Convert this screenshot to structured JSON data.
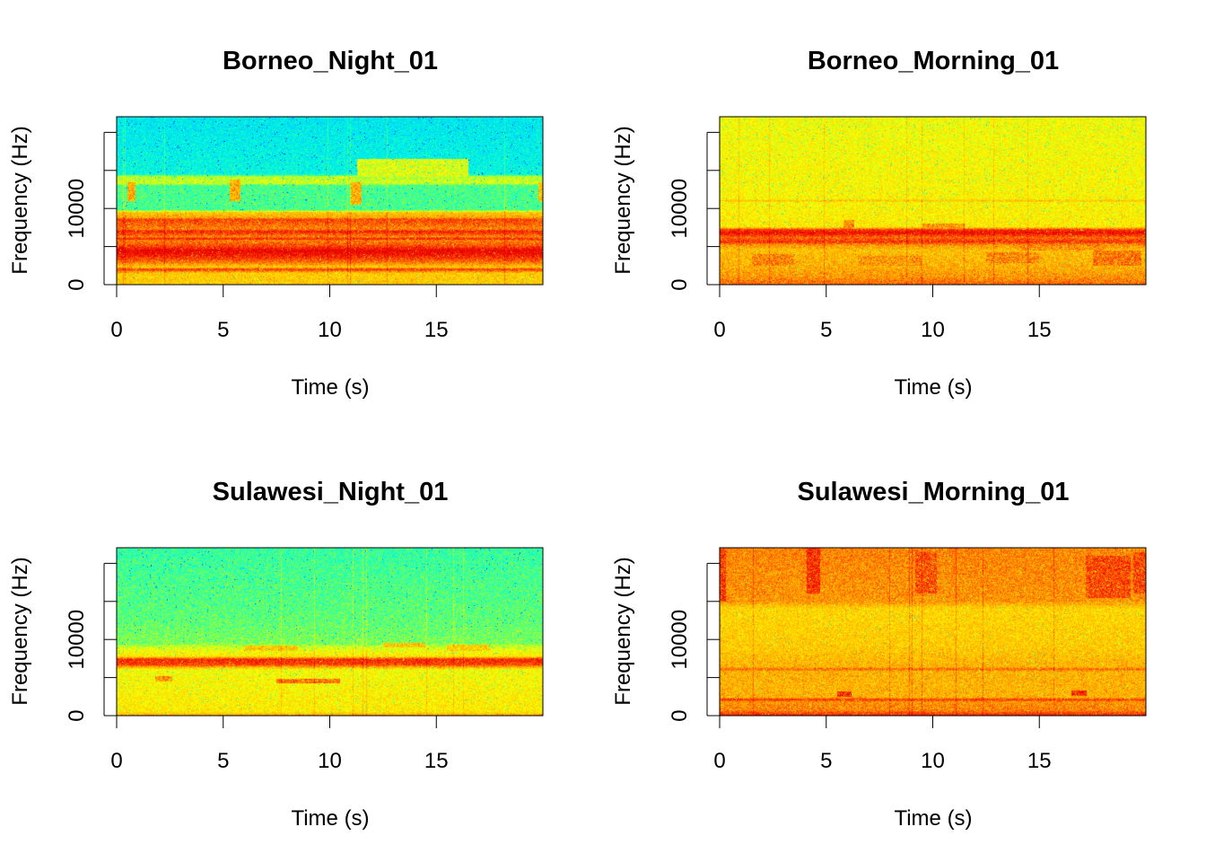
{
  "chart_data": [
    {
      "type": "heatmap",
      "title": "Borneo_Night_01",
      "xlabel": "Time (s)",
      "ylabel": "Frequency (Hz)",
      "xlim": [
        0,
        20
      ],
      "ylim": [
        0,
        22050
      ],
      "xticks": [
        0,
        5,
        10,
        15
      ],
      "xtick_labels": [
        "0",
        "5",
        "10",
        "15"
      ],
      "yticks": [
        0,
        5000,
        10000,
        15000,
        20000
      ],
      "ytick_labels": [
        "0",
        "",
        "10000",
        "",
        ""
      ],
      "profile": [
        [
          0,
          0.72
        ],
        [
          1500,
          0.72
        ],
        [
          2000,
          0.92
        ],
        [
          2300,
          0.72
        ],
        [
          3000,
          0.85
        ],
        [
          4000,
          0.97
        ],
        [
          4500,
          1.0
        ],
        [
          5000,
          0.9
        ],
        [
          5800,
          0.82
        ],
        [
          6000,
          0.95
        ],
        [
          6300,
          0.82
        ],
        [
          7000,
          0.95
        ],
        [
          7300,
          0.82
        ],
        [
          8600,
          0.9
        ],
        [
          8800,
          0.78
        ],
        [
          9500,
          0.72
        ],
        [
          9800,
          0.45
        ],
        [
          13000,
          0.45
        ],
        [
          13300,
          0.58
        ],
        [
          14200,
          0.55
        ],
        [
          14500,
          0.36
        ],
        [
          22050,
          0.32
        ]
      ],
      "events": [
        {
          "t": [
            0.5,
            0.9
          ],
          "f": [
            11000,
            13500
          ],
          "level": 0.82
        },
        {
          "t": [
            5.3,
            5.8
          ],
          "f": [
            11000,
            13800
          ],
          "level": 0.82
        },
        {
          "t": [
            11.0,
            11.5
          ],
          "f": [
            10500,
            13500
          ],
          "level": 0.82
        },
        {
          "t": [
            19.8,
            20.0
          ],
          "f": [
            11000,
            13500
          ],
          "level": 0.8
        },
        {
          "t": [
            11.3,
            16.5
          ],
          "f": [
            14200,
            16500
          ],
          "level": 0.64
        }
      ]
    },
    {
      "type": "heatmap",
      "title": "Borneo_Morning_01",
      "xlabel": "Time (s)",
      "ylabel": "Frequency (Hz)",
      "xlim": [
        0,
        20
      ],
      "ylim": [
        0,
        22050
      ],
      "xticks": [
        0,
        5,
        10,
        15
      ],
      "xtick_labels": [
        "0",
        "5",
        "10",
        "15"
      ],
      "yticks": [
        0,
        5000,
        10000,
        15000,
        20000
      ],
      "ytick_labels": [
        "0",
        "",
        "10000",
        "",
        ""
      ],
      "profile": [
        [
          0,
          0.86
        ],
        [
          1000,
          0.8
        ],
        [
          2500,
          0.76
        ],
        [
          4500,
          0.74
        ],
        [
          5200,
          0.8
        ],
        [
          5600,
          0.92
        ],
        [
          6200,
          0.85
        ],
        [
          6800,
          0.98
        ],
        [
          7200,
          0.92
        ],
        [
          7600,
          0.66
        ],
        [
          10800,
          0.64
        ],
        [
          11000,
          0.74
        ],
        [
          11300,
          0.64
        ],
        [
          22050,
          0.62
        ]
      ],
      "events": [
        {
          "t": [
            1.5,
            3.5
          ],
          "f": [
            2500,
            4000
          ],
          "level": 0.88
        },
        {
          "t": [
            6.5,
            9.5
          ],
          "f": [
            2500,
            3800
          ],
          "level": 0.86
        },
        {
          "t": [
            12.5,
            15.0
          ],
          "f": [
            2800,
            4200
          ],
          "level": 0.88
        },
        {
          "t": [
            14.0,
            18.0
          ],
          "f": [
            4500,
            6500
          ],
          "level": 0.86
        },
        {
          "t": [
            17.5,
            19.8
          ],
          "f": [
            2500,
            4500
          ],
          "level": 0.9
        },
        {
          "t": [
            9.5,
            11.5
          ],
          "f": [
            7000,
            8000
          ],
          "level": 0.86
        },
        {
          "t": [
            5.8,
            6.3
          ],
          "f": [
            7000,
            8500
          ],
          "level": 0.86
        }
      ]
    },
    {
      "type": "heatmap",
      "title": "Sulawesi_Night_01",
      "xlabel": "Time (s)",
      "ylabel": "Frequency (Hz)",
      "xlim": [
        0,
        20
      ],
      "ylim": [
        0,
        22050
      ],
      "xticks": [
        0,
        5,
        10,
        15
      ],
      "xtick_labels": [
        "0",
        "5",
        "10",
        "15"
      ],
      "yticks": [
        0,
        5000,
        10000,
        15000,
        20000
      ],
      "ytick_labels": [
        "0",
        "",
        "10000",
        "",
        ""
      ],
      "profile": [
        [
          0,
          0.8
        ],
        [
          500,
          0.66
        ],
        [
          4000,
          0.64
        ],
        [
          6000,
          0.62
        ],
        [
          6700,
          0.9
        ],
        [
          7400,
          0.93
        ],
        [
          7800,
          0.66
        ],
        [
          8800,
          0.6
        ],
        [
          9500,
          0.5
        ],
        [
          13000,
          0.47
        ],
        [
          22050,
          0.43
        ]
      ],
      "events": [
        {
          "t": [
            7.5,
            10.5
          ],
          "f": [
            4200,
            4800
          ],
          "level": 0.9
        },
        {
          "t": [
            1.8,
            2.6
          ],
          "f": [
            4500,
            5200
          ],
          "level": 0.85
        },
        {
          "t": [
            6.0,
            8.5
          ],
          "f": [
            8500,
            9200
          ],
          "level": 0.78
        },
        {
          "t": [
            12.5,
            14.5
          ],
          "f": [
            9000,
            9600
          ],
          "level": 0.78
        },
        {
          "t": [
            15.5,
            17.5
          ],
          "f": [
            8500,
            9300
          ],
          "level": 0.76
        }
      ]
    },
    {
      "type": "heatmap",
      "title": "Sulawesi_Morning_01",
      "xlabel": "Time (s)",
      "ylabel": "Frequency (Hz)",
      "xlim": [
        0,
        20
      ],
      "ylim": [
        0,
        22050
      ],
      "xticks": [
        0,
        5,
        10,
        15
      ],
      "xtick_labels": [
        "0",
        "5",
        "10",
        "15"
      ],
      "yticks": [
        0,
        5000,
        10000,
        15000,
        20000
      ],
      "ytick_labels": [
        "0",
        "",
        "10000",
        "",
        ""
      ],
      "profile": [
        [
          0,
          0.95
        ],
        [
          700,
          0.82
        ],
        [
          1800,
          0.8
        ],
        [
          2100,
          0.92
        ],
        [
          2400,
          0.76
        ],
        [
          5800,
          0.76
        ],
        [
          6100,
          0.86
        ],
        [
          6400,
          0.76
        ],
        [
          9000,
          0.72
        ],
        [
          14000,
          0.7
        ],
        [
          15000,
          0.8
        ],
        [
          22050,
          0.82
        ]
      ],
      "events": [
        {
          "t": [
            0.0,
            0.3
          ],
          "f": [
            15000,
            22050
          ],
          "level": 0.98
        },
        {
          "t": [
            4.1,
            4.7
          ],
          "f": [
            16000,
            22050
          ],
          "level": 1.0
        },
        {
          "t": [
            9.2,
            10.2
          ],
          "f": [
            16000,
            21500
          ],
          "level": 0.95
        },
        {
          "t": [
            17.2,
            19.3
          ],
          "f": [
            15500,
            21000
          ],
          "level": 0.96
        },
        {
          "t": [
            19.4,
            20.0
          ],
          "f": [
            16000,
            21500
          ],
          "level": 0.96
        },
        {
          "t": [
            5.5,
            6.2
          ],
          "f": [
            2500,
            3200
          ],
          "level": 1.0
        },
        {
          "t": [
            16.5,
            17.2
          ],
          "f": [
            2600,
            3300
          ],
          "level": 1.0
        }
      ]
    }
  ]
}
